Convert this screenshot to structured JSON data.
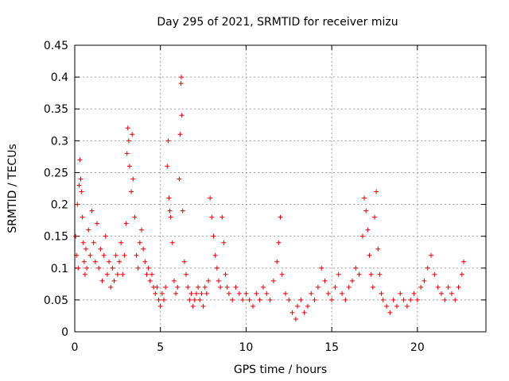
{
  "chart_data": {
    "type": "scatter",
    "title": "Day 295 of 2021, SRMTID for receiver mizu",
    "xlabel": "GPS time / hours",
    "ylabel": "SRMTID / TECUs",
    "xlim": [
      0,
      24
    ],
    "ylim": [
      0,
      0.45
    ],
    "xticks": [
      0,
      5,
      10,
      15,
      20
    ],
    "xtick_labels": [
      "0",
      "5",
      "10",
      "15",
      "20"
    ],
    "yticks": [
      0,
      0.05,
      0.1,
      0.15,
      0.2,
      0.25,
      0.3,
      0.35,
      0.4,
      0.45
    ],
    "ytick_labels": [
      "0",
      "0.05",
      "0.1",
      "0.15",
      "0.2",
      "0.25",
      "0.3",
      "0.35",
      "0.4",
      "0.45"
    ],
    "grid": true,
    "marker": "plus",
    "color": "#e00000",
    "points": [
      [
        0.05,
        0.15
      ],
      [
        0.1,
        0.12
      ],
      [
        0.15,
        0.2
      ],
      [
        0.2,
        0.1
      ],
      [
        0.25,
        0.23
      ],
      [
        0.3,
        0.27
      ],
      [
        0.35,
        0.24
      ],
      [
        0.4,
        0.22
      ],
      [
        0.45,
        0.18
      ],
      [
        0.5,
        0.14
      ],
      [
        0.55,
        0.11
      ],
      [
        0.6,
        0.09
      ],
      [
        0.65,
        0.13
      ],
      [
        0.7,
        0.1
      ],
      [
        0.8,
        0.16
      ],
      [
        0.9,
        0.12
      ],
      [
        1.0,
        0.19
      ],
      [
        1.1,
        0.14
      ],
      [
        1.2,
        0.11
      ],
      [
        1.3,
        0.17
      ],
      [
        1.4,
        0.1
      ],
      [
        1.5,
        0.13
      ],
      [
        1.6,
        0.08
      ],
      [
        1.7,
        0.12
      ],
      [
        1.8,
        0.15
      ],
      [
        1.9,
        0.09
      ],
      [
        2.0,
        0.11
      ],
      [
        2.1,
        0.07
      ],
      [
        2.2,
        0.1
      ],
      [
        2.3,
        0.08
      ],
      [
        2.4,
        0.12
      ],
      [
        2.5,
        0.09
      ],
      [
        2.6,
        0.11
      ],
      [
        2.7,
        0.14
      ],
      [
        2.8,
        0.09
      ],
      [
        2.9,
        0.12
      ],
      [
        3.0,
        0.17
      ],
      [
        3.05,
        0.28
      ],
      [
        3.1,
        0.32
      ],
      [
        3.15,
        0.3
      ],
      [
        3.2,
        0.26
      ],
      [
        3.3,
        0.22
      ],
      [
        3.35,
        0.31
      ],
      [
        3.4,
        0.24
      ],
      [
        3.5,
        0.18
      ],
      [
        3.6,
        0.12
      ],
      [
        3.7,
        0.1
      ],
      [
        3.8,
        0.14
      ],
      [
        3.9,
        0.16
      ],
      [
        4.0,
        0.13
      ],
      [
        4.1,
        0.11
      ],
      [
        4.2,
        0.09
      ],
      [
        4.3,
        0.1
      ],
      [
        4.4,
        0.08
      ],
      [
        4.5,
        0.09
      ],
      [
        4.6,
        0.07
      ],
      [
        4.7,
        0.06
      ],
      [
        4.8,
        0.07
      ],
      [
        4.9,
        0.05
      ],
      [
        5.0,
        0.04
      ],
      [
        5.1,
        0.06
      ],
      [
        5.2,
        0.05
      ],
      [
        5.3,
        0.07
      ],
      [
        5.4,
        0.26
      ],
      [
        5.45,
        0.3
      ],
      [
        5.5,
        0.21
      ],
      [
        5.55,
        0.19
      ],
      [
        5.6,
        0.18
      ],
      [
        5.7,
        0.14
      ],
      [
        5.8,
        0.08
      ],
      [
        5.9,
        0.06
      ],
      [
        6.0,
        0.07
      ],
      [
        6.1,
        0.24
      ],
      [
        6.15,
        0.31
      ],
      [
        6.2,
        0.39
      ],
      [
        6.22,
        0.4
      ],
      [
        6.25,
        0.34
      ],
      [
        6.3,
        0.19
      ],
      [
        6.4,
        0.11
      ],
      [
        6.5,
        0.09
      ],
      [
        6.6,
        0.07
      ],
      [
        6.7,
        0.05
      ],
      [
        6.8,
        0.06
      ],
      [
        6.9,
        0.04
      ],
      [
        7.0,
        0.05
      ],
      [
        7.1,
        0.06
      ],
      [
        7.2,
        0.07
      ],
      [
        7.3,
        0.05
      ],
      [
        7.4,
        0.06
      ],
      [
        7.5,
        0.04
      ],
      [
        7.6,
        0.07
      ],
      [
        7.7,
        0.06
      ],
      [
        7.8,
        0.08
      ],
      [
        7.9,
        0.21
      ],
      [
        8.0,
        0.18
      ],
      [
        8.1,
        0.15
      ],
      [
        8.2,
        0.12
      ],
      [
        8.3,
        0.1
      ],
      [
        8.4,
        0.08
      ],
      [
        8.5,
        0.07
      ],
      [
        8.6,
        0.18
      ],
      [
        8.7,
        0.14
      ],
      [
        8.8,
        0.09
      ],
      [
        8.9,
        0.07
      ],
      [
        9.0,
        0.06
      ],
      [
        9.2,
        0.05
      ],
      [
        9.4,
        0.07
      ],
      [
        9.6,
        0.06
      ],
      [
        9.8,
        0.05
      ],
      [
        10.0,
        0.06
      ],
      [
        10.2,
        0.05
      ],
      [
        10.4,
        0.04
      ],
      [
        10.6,
        0.06
      ],
      [
        10.8,
        0.05
      ],
      [
        11.0,
        0.07
      ],
      [
        11.2,
        0.06
      ],
      [
        11.4,
        0.05
      ],
      [
        11.6,
        0.08
      ],
      [
        11.8,
        0.11
      ],
      [
        11.9,
        0.14
      ],
      [
        12.0,
        0.18
      ],
      [
        12.1,
        0.09
      ],
      [
        12.3,
        0.06
      ],
      [
        12.5,
        0.05
      ],
      [
        12.7,
        0.03
      ],
      [
        12.9,
        0.02
      ],
      [
        13.0,
        0.04
      ],
      [
        13.2,
        0.05
      ],
      [
        13.4,
        0.03
      ],
      [
        13.6,
        0.04
      ],
      [
        13.8,
        0.06
      ],
      [
        14.0,
        0.05
      ],
      [
        14.2,
        0.07
      ],
      [
        14.4,
        0.1
      ],
      [
        14.6,
        0.08
      ],
      [
        14.8,
        0.06
      ],
      [
        15.0,
        0.05
      ],
      [
        15.2,
        0.07
      ],
      [
        15.4,
        0.09
      ],
      [
        15.6,
        0.06
      ],
      [
        15.8,
        0.05
      ],
      [
        16.0,
        0.07
      ],
      [
        16.2,
        0.08
      ],
      [
        16.4,
        0.1
      ],
      [
        16.6,
        0.09
      ],
      [
        16.8,
        0.15
      ],
      [
        16.9,
        0.21
      ],
      [
        17.0,
        0.19
      ],
      [
        17.1,
        0.16
      ],
      [
        17.2,
        0.12
      ],
      [
        17.3,
        0.09
      ],
      [
        17.4,
        0.07
      ],
      [
        17.5,
        0.18
      ],
      [
        17.6,
        0.22
      ],
      [
        17.7,
        0.13
      ],
      [
        17.8,
        0.09
      ],
      [
        17.9,
        0.06
      ],
      [
        18.0,
        0.05
      ],
      [
        18.2,
        0.04
      ],
      [
        18.4,
        0.03
      ],
      [
        18.6,
        0.05
      ],
      [
        18.8,
        0.04
      ],
      [
        19.0,
        0.06
      ],
      [
        19.2,
        0.05
      ],
      [
        19.4,
        0.04
      ],
      [
        19.6,
        0.05
      ],
      [
        19.8,
        0.06
      ],
      [
        20.0,
        0.05
      ],
      [
        20.2,
        0.07
      ],
      [
        20.4,
        0.08
      ],
      [
        20.6,
        0.1
      ],
      [
        20.8,
        0.12
      ],
      [
        21.0,
        0.09
      ],
      [
        21.2,
        0.07
      ],
      [
        21.4,
        0.06
      ],
      [
        21.6,
        0.05
      ],
      [
        21.8,
        0.07
      ],
      [
        22.0,
        0.06
      ],
      [
        22.2,
        0.05
      ],
      [
        22.4,
        0.07
      ],
      [
        22.6,
        0.09
      ],
      [
        22.7,
        0.11
      ]
    ]
  }
}
